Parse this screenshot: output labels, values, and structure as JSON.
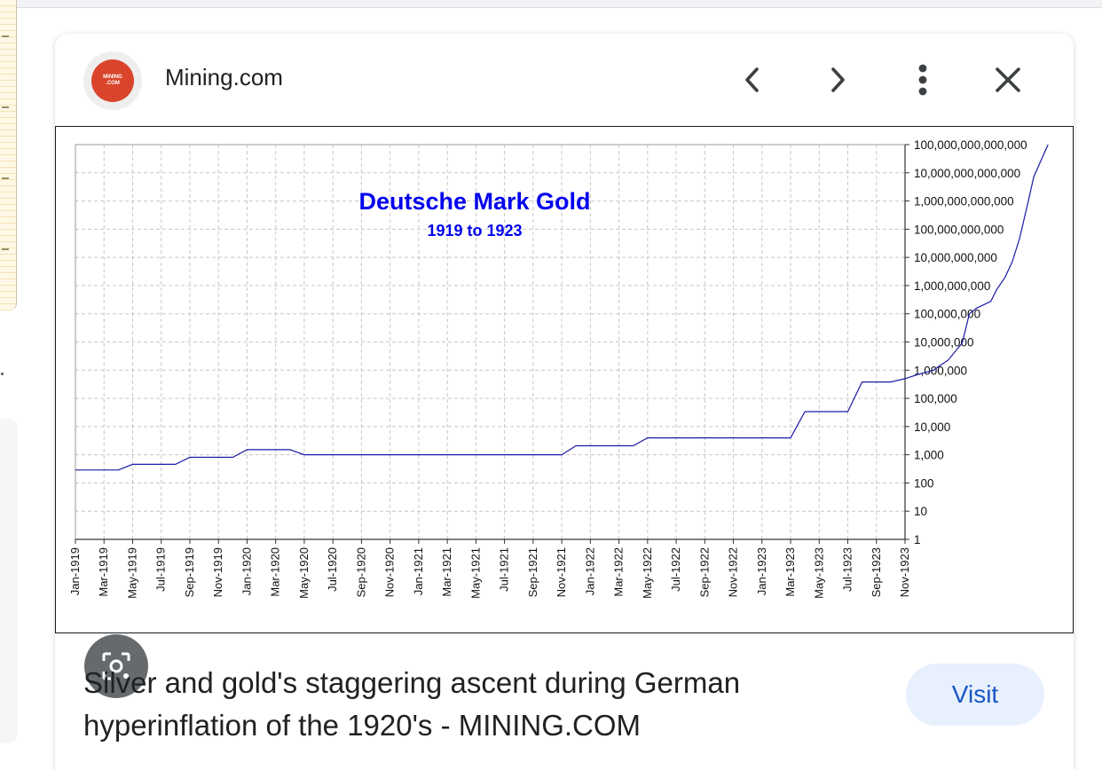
{
  "source": {
    "site_name": "Mining.com",
    "logo_text_line1": "MINING",
    "logo_text_line2": ".COM"
  },
  "controls": {
    "prev_icon": "chevron-left-icon",
    "next_icon": "chevron-right-icon",
    "more_icon": "more-vert-icon",
    "close_icon": "close-icon",
    "lens_icon": "lens-search-icon"
  },
  "caption": {
    "title": "Silver and gold's staggering ascent during German hyperinflation of the 1920's - MINING.COM",
    "visit_label": "Visit"
  },
  "colors": {
    "line": "#1a1aa6",
    "title": "#0000ee",
    "visit_bg": "#e8f0fe",
    "visit_text": "#1a56c4"
  },
  "chart_data": {
    "type": "line",
    "title": "Deutsche Mark Gold",
    "subtitle": "1919 to 1923",
    "xlabel": "",
    "ylabel": "",
    "y_scale": "log10",
    "ylim_exponent": [
      0,
      14
    ],
    "grid": true,
    "x_ticks": [
      "Jan-1919",
      "Mar-1919",
      "May-1919",
      "Jul-1919",
      "Sep-1919",
      "Nov-1919",
      "Jan-1920",
      "Mar-1920",
      "May-1920",
      "Jul-1920",
      "Sep-1920",
      "Nov-1920",
      "Jan-1921",
      "Mar-1921",
      "May-1921",
      "Jul-1921",
      "Sep-1921",
      "Nov-1921",
      "Jan-1922",
      "Mar-1922",
      "May-1922",
      "Jul-1922",
      "Sep-1922",
      "Nov-1922",
      "Jan-1923",
      "Mar-1923",
      "May-1923",
      "Jul-1923",
      "Sep-1923",
      "Nov-1923"
    ],
    "y_ticks": [
      "1",
      "10",
      "100",
      "1,000",
      "10,000",
      "100,000",
      "1,000,000",
      "10,000,000",
      "100,000,000",
      "1,000,000,000",
      "10,000,000,000",
      "100,000,000,000",
      "1,000,000,000,000",
      "10,000,000,000,000",
      "100,000,000,000,000"
    ],
    "series": [
      {
        "x_month": [
          0,
          3,
          4,
          7,
          8,
          11,
          12,
          15,
          16,
          21,
          22,
          29,
          31,
          34,
          35,
          39,
          40,
          43,
          44,
          50,
          51,
          54,
          55,
          56,
          57,
          58,
          59,
          60,
          60.4,
          61,
          62,
          62.5,
          63,
          64,
          64.4,
          65,
          65.5,
          66,
          66.6,
          67,
          68
        ],
        "y_log": [
          2.46,
          2.46,
          2.66,
          2.66,
          2.91,
          2.91,
          3.18,
          3.18,
          3.0,
          3.0,
          3.0,
          3.0,
          3.0,
          3.0,
          3.32,
          3.32,
          3.6,
          3.6,
          3.6,
          3.6,
          4.53,
          4.53,
          5.58,
          5.58,
          5.58,
          5.7,
          5.86,
          6.0,
          6.15,
          6.35,
          6.97,
          8.0,
          8.2,
          8.44,
          8.85,
          9.3,
          9.85,
          10.66,
          11.95,
          12.86,
          14.0
        ]
      }
    ]
  }
}
